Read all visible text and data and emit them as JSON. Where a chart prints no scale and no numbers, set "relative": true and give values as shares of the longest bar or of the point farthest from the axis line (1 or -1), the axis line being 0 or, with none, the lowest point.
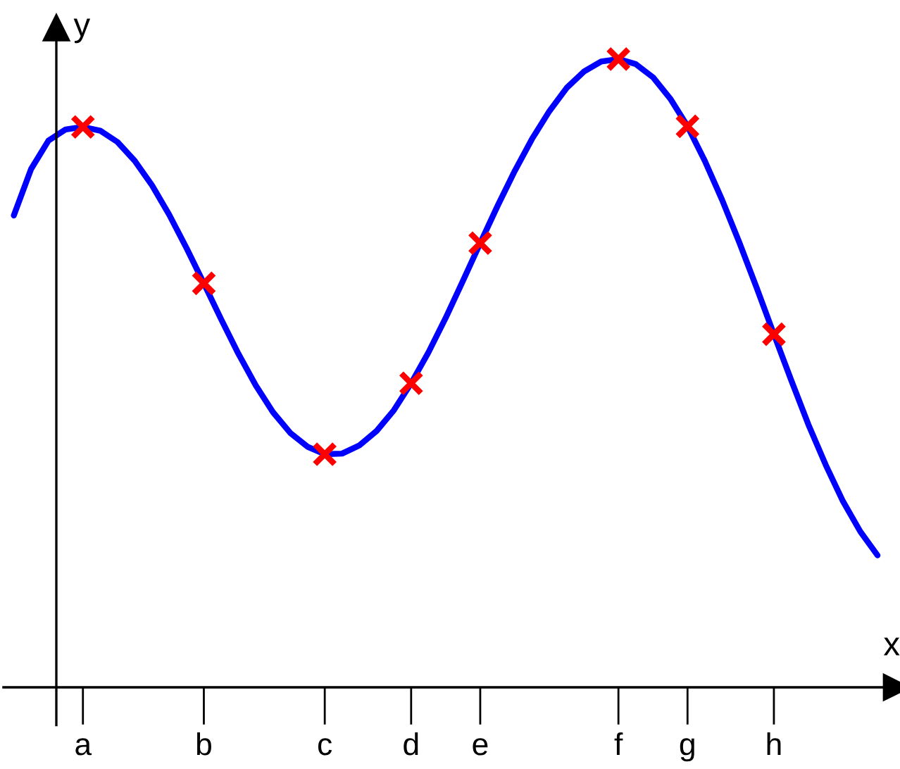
{
  "chart_data": {
    "type": "line",
    "relative": true,
    "xlabel": "x",
    "ylabel": "y",
    "categories": [
      null,
      null,
      null,
      null,
      "a",
      null,
      null,
      null,
      null,
      null,
      null,
      "b",
      null,
      null,
      null,
      null,
      null,
      null,
      "c",
      null,
      null,
      null,
      null,
      "d",
      null,
      null,
      null,
      "e",
      null,
      null,
      null,
      null,
      null,
      null,
      null,
      "f",
      null,
      null,
      null,
      "g",
      null,
      null,
      null,
      null,
      "h",
      null,
      null,
      null,
      null,
      null,
      null
    ],
    "grid": false,
    "series": [
      {
        "color": "#0000ff",
        "line_style": "solid",
        "values": [
          0.751,
          0.825,
          0.87,
          0.888,
          0.892,
          0.886,
          0.868,
          0.838,
          0.799,
          0.752,
          0.699,
          0.643,
          0.586,
          0.531,
          0.481,
          0.438,
          0.405,
          0.383,
          0.371,
          0.372,
          0.385,
          0.408,
          0.441,
          0.484,
          0.533,
          0.588,
          0.647,
          0.707,
          0.766,
          0.822,
          0.873,
          0.917,
          0.954,
          0.98,
          0.996,
          1.0,
          0.992,
          0.971,
          0.937,
          0.893,
          0.838,
          0.776,
          0.708,
          0.636,
          0.562,
          0.489,
          0.418,
          0.354,
          0.296,
          0.248,
          0.21
        ]
      },
      {
        "type": "scatter",
        "color": "#ff0000",
        "marker": "cross",
        "values": [
          null,
          null,
          null,
          null,
          0.892,
          null,
          null,
          null,
          null,
          null,
          null,
          0.643,
          null,
          null,
          null,
          null,
          null,
          null,
          0.371,
          null,
          null,
          null,
          null,
          0.484,
          null,
          null,
          null,
          0.707,
          null,
          null,
          null,
          null,
          null,
          null,
          null,
          1.0,
          null,
          null,
          null,
          0.893,
          null,
          null,
          null,
          null,
          0.562,
          null,
          null,
          null,
          null,
          null,
          null
        ]
      }
    ]
  }
}
